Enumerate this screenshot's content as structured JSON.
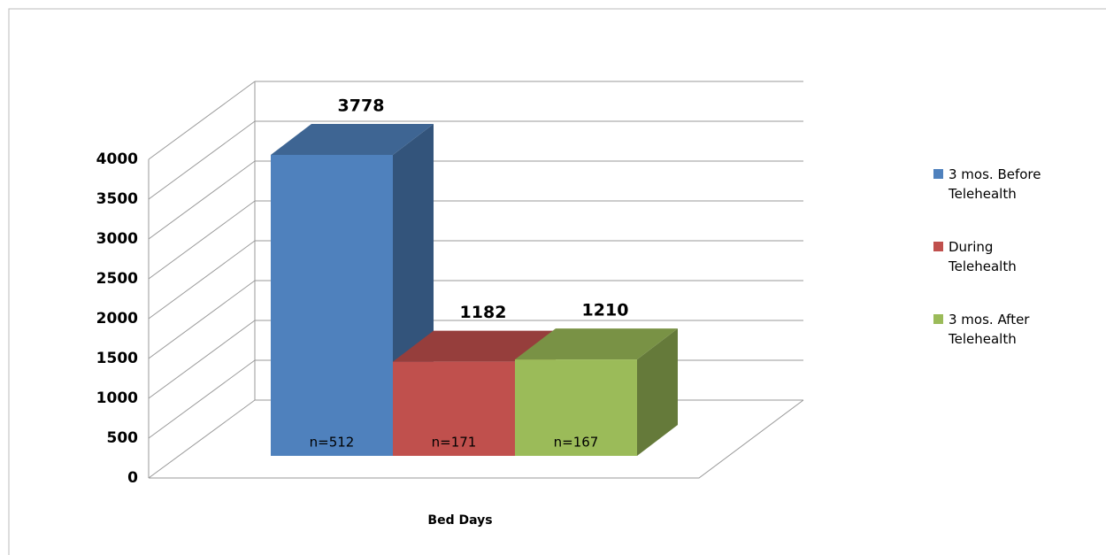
{
  "chart_data": {
    "type": "bar3d",
    "categories": [
      "Bed Days"
    ],
    "series": [
      {
        "name": "3 mos. Before Telehealth",
        "color": "#4f81bd",
        "values": [
          3778
        ],
        "annotation": "n=512"
      },
      {
        "name": "During Telehealth",
        "color": "#c0504d",
        "values": [
          1182
        ],
        "annotation": "n=171"
      },
      {
        "name": "3 mos. After Telehealth",
        "color": "#9bbb59",
        "values": [
          1210
        ],
        "annotation": "n=167"
      }
    ],
    "ylim": [
      0,
      4000
    ],
    "yticks": [
      0,
      500,
      1000,
      1500,
      2000,
      2500,
      3000,
      3500,
      4000
    ],
    "grid": true,
    "legend": "right"
  }
}
